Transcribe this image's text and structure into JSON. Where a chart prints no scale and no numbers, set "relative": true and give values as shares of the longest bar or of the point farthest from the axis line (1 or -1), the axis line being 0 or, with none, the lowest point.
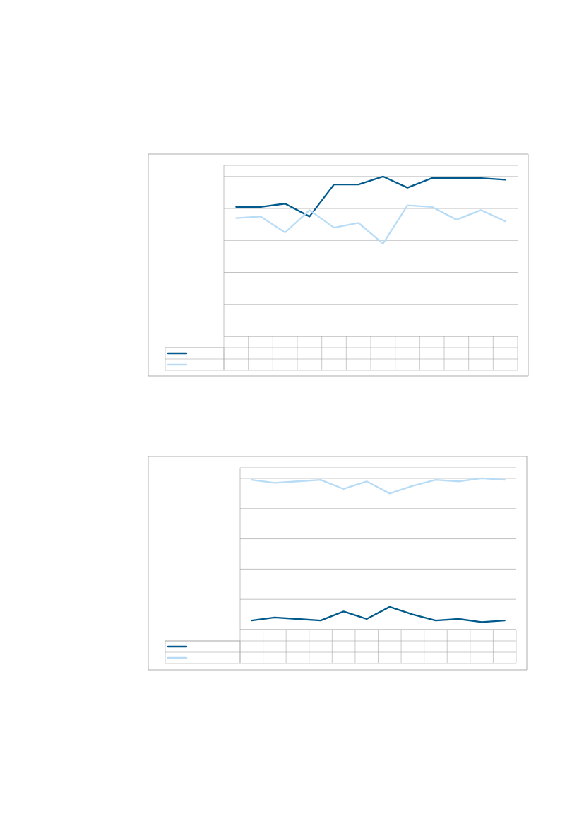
{
  "chart_data": [
    {
      "type": "line",
      "relative": true,
      "grid": "y",
      "categories": [
        null,
        null,
        null,
        null,
        null,
        null,
        null,
        null,
        null,
        null,
        null,
        null
      ],
      "series": [
        {
          "color": "#005a8c",
          "line_style": "solid",
          "values": [
            0.81,
            0.81,
            0.83,
            0.75,
            0.95,
            0.95,
            1,
            0.93,
            0.99,
            0.99,
            0.99,
            0.98
          ]
        },
        {
          "color": "#b8dcf5",
          "line_style": "solid",
          "values": [
            0.74,
            0.75,
            0.65,
            0.79,
            0.68,
            0.71,
            0.58,
            0.82,
            0.81,
            0.73,
            0.79,
            0.72
          ]
        }
      ]
    },
    {
      "type": "line",
      "relative": true,
      "grid": "y",
      "categories": [
        null,
        null,
        null,
        null,
        null,
        null,
        null,
        null,
        null,
        null,
        null,
        null
      ],
      "series": [
        {
          "color": "#005a8c",
          "line_style": "solid",
          "values": [
            0.06,
            0.08,
            0.07,
            0.06,
            0.12,
            0.07,
            0.15,
            0.1,
            0.06,
            0.07,
            0.05,
            0.06
          ]
        },
        {
          "color": "#b8dcf5",
          "line_style": "solid",
          "values": [
            0.99,
            0.97,
            0.98,
            0.99,
            0.93,
            0.98,
            0.9,
            0.95,
            0.99,
            0.98,
            1,
            0.99
          ]
        }
      ]
    }
  ]
}
